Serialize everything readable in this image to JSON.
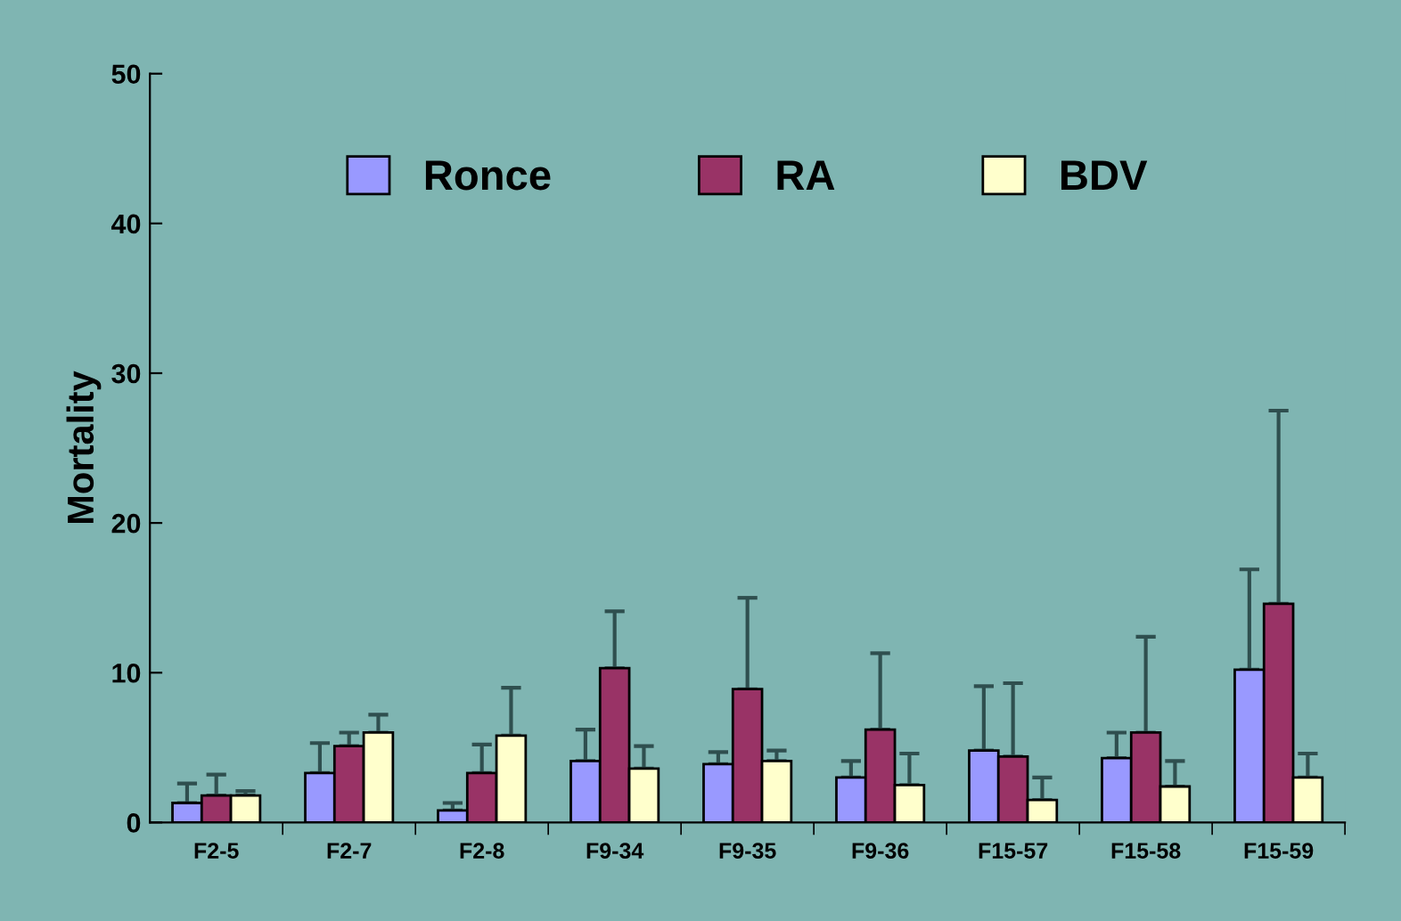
{
  "chart_data": {
    "type": "bar",
    "ylabel": "Mortality",
    "categories": [
      "F2-5",
      "F2-7",
      "F2-8",
      "F9-34",
      "F9-35",
      "F9-36",
      "F15-57",
      "F15-58",
      "F15-59"
    ],
    "series": [
      {
        "name": "Ronce",
        "color": "#9999ff",
        "values": [
          1.3,
          3.3,
          0.8,
          4.1,
          3.9,
          3.0,
          4.8,
          4.3,
          10.2
        ],
        "errors": [
          [
            1.3,
            2.6
          ],
          [
            3.3,
            5.3
          ],
          [
            0.8,
            1.3
          ],
          [
            4.1,
            6.2
          ],
          [
            3.9,
            4.7
          ],
          [
            3.0,
            4.1
          ],
          [
            4.8,
            9.1
          ],
          [
            4.3,
            6.0
          ],
          [
            10.2,
            16.9
          ]
        ]
      },
      {
        "name": "RA",
        "color": "#993366",
        "values": [
          1.8,
          5.1,
          3.3,
          10.3,
          8.9,
          6.2,
          4.4,
          6.0,
          14.6
        ],
        "errors": [
          [
            1.8,
            3.2
          ],
          [
            5.1,
            6.0
          ],
          [
            3.3,
            5.2
          ],
          [
            10.3,
            14.1
          ],
          [
            8.9,
            15.0
          ],
          [
            6.2,
            11.3
          ],
          [
            4.4,
            9.3
          ],
          [
            6.0,
            12.4
          ],
          [
            14.6,
            27.5
          ]
        ]
      },
      {
        "name": "BDV",
        "color": "#ffffcc",
        "values": [
          1.8,
          6.0,
          5.8,
          3.6,
          4.1,
          2.5,
          1.5,
          2.4,
          3.0
        ],
        "errors": [
          [
            1.8,
            2.1
          ],
          [
            6.0,
            7.2
          ],
          [
            5.8,
            9.0
          ],
          [
            3.6,
            5.1
          ],
          [
            4.1,
            4.8
          ],
          [
            2.5,
            4.6
          ],
          [
            1.5,
            3.0
          ],
          [
            2.4,
            4.1
          ],
          [
            3.0,
            4.6
          ]
        ]
      }
    ],
    "ylim": [
      0,
      50
    ],
    "yticks": [
      0,
      10,
      20,
      30,
      40,
      50
    ],
    "grid": false,
    "legend": "top"
  }
}
